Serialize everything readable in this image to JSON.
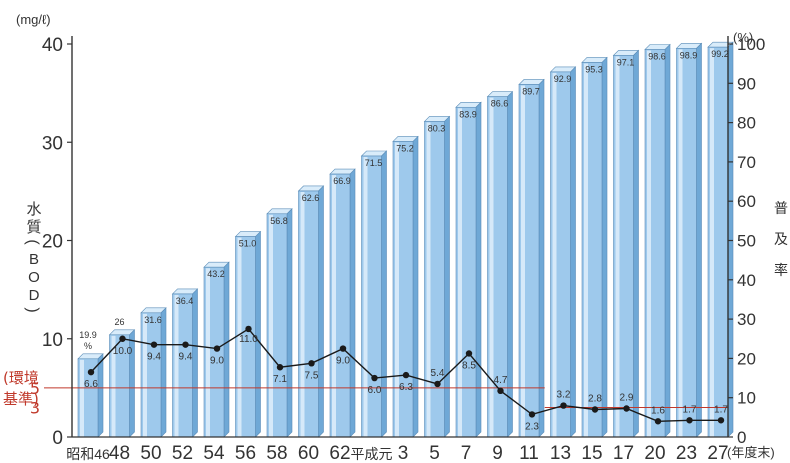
{
  "chart_data": {
    "type": "bar+line",
    "categories": [
      "昭和46",
      "48",
      "50",
      "52",
      "54",
      "56",
      "58",
      "60",
      "62",
      "平成元",
      "3",
      "5",
      "7",
      "9",
      "11",
      "13",
      "15",
      "17",
      "20",
      "23",
      "27"
    ],
    "x_suffix": "(年度末)",
    "series": [
      {
        "name": "普及率",
        "kind": "bar",
        "axis": "right",
        "unit": "%",
        "values": [
          19.9,
          26,
          31.6,
          36.4,
          43.2,
          51.0,
          56.8,
          62.6,
          66.9,
          71.5,
          75.2,
          80.3,
          83.9,
          86.6,
          89.7,
          92.9,
          95.3,
          97.1,
          98.6,
          98.9,
          99.2
        ],
        "labels": [
          "19.9",
          "26",
          "31.6",
          "36.4",
          "43.2",
          "51.0",
          "56.8",
          "62.6",
          "66.9",
          "71.5",
          "75.2",
          "80.3",
          "83.9",
          "86.6",
          "89.7",
          "92.9",
          "95.3",
          "97.1",
          "98.6",
          "98.9",
          "99.2"
        ],
        "first_label_unit": "%",
        "color": "#9ec9ec"
      },
      {
        "name": "水質(BOD)",
        "kind": "line",
        "axis": "left",
        "unit": "mg/ℓ",
        "values": [
          6.6,
          10.0,
          9.4,
          9.4,
          9.0,
          11.0,
          7.1,
          7.5,
          9.0,
          6.0,
          6.3,
          5.4,
          8.5,
          4.7,
          2.3,
          3.2,
          2.8,
          2.9,
          1.6,
          1.7,
          1.7
        ],
        "labels": [
          "6.6",
          "10.0",
          "9.4",
          "9.4",
          "9.0",
          "11.0",
          "7.1",
          "7.5",
          "9.0",
          "6.0",
          "6.3",
          "5.4",
          "8.5",
          "4.7",
          "2.3",
          "3.2",
          "2.8",
          "2.9",
          "1.6",
          "1.7",
          "1.7"
        ],
        "color": "#1a1a1a"
      }
    ],
    "left_axis": {
      "unit_label": "(mg/ℓ)",
      "title": "水質(BOD)",
      "ylim": [
        0,
        40
      ],
      "ticks": [
        0,
        10,
        20,
        30,
        40
      ]
    },
    "right_axis": {
      "unit_label": "(%)",
      "title": "普及率",
      "ylim": [
        0,
        100
      ],
      "ticks": [
        0,
        10,
        20,
        30,
        40,
        50,
        60,
        70,
        80,
        90,
        100
      ]
    },
    "reference": {
      "label": "(環境基準)",
      "label_lines": [
        "(環境",
        "基準)"
      ],
      "levels": [
        {
          "value": 5,
          "label": "5",
          "from_index": 0,
          "to_index": 14
        },
        {
          "value": 3,
          "label": "3",
          "from_index": 15,
          "to_index": 20
        }
      ],
      "color": "#c0392b"
    }
  }
}
